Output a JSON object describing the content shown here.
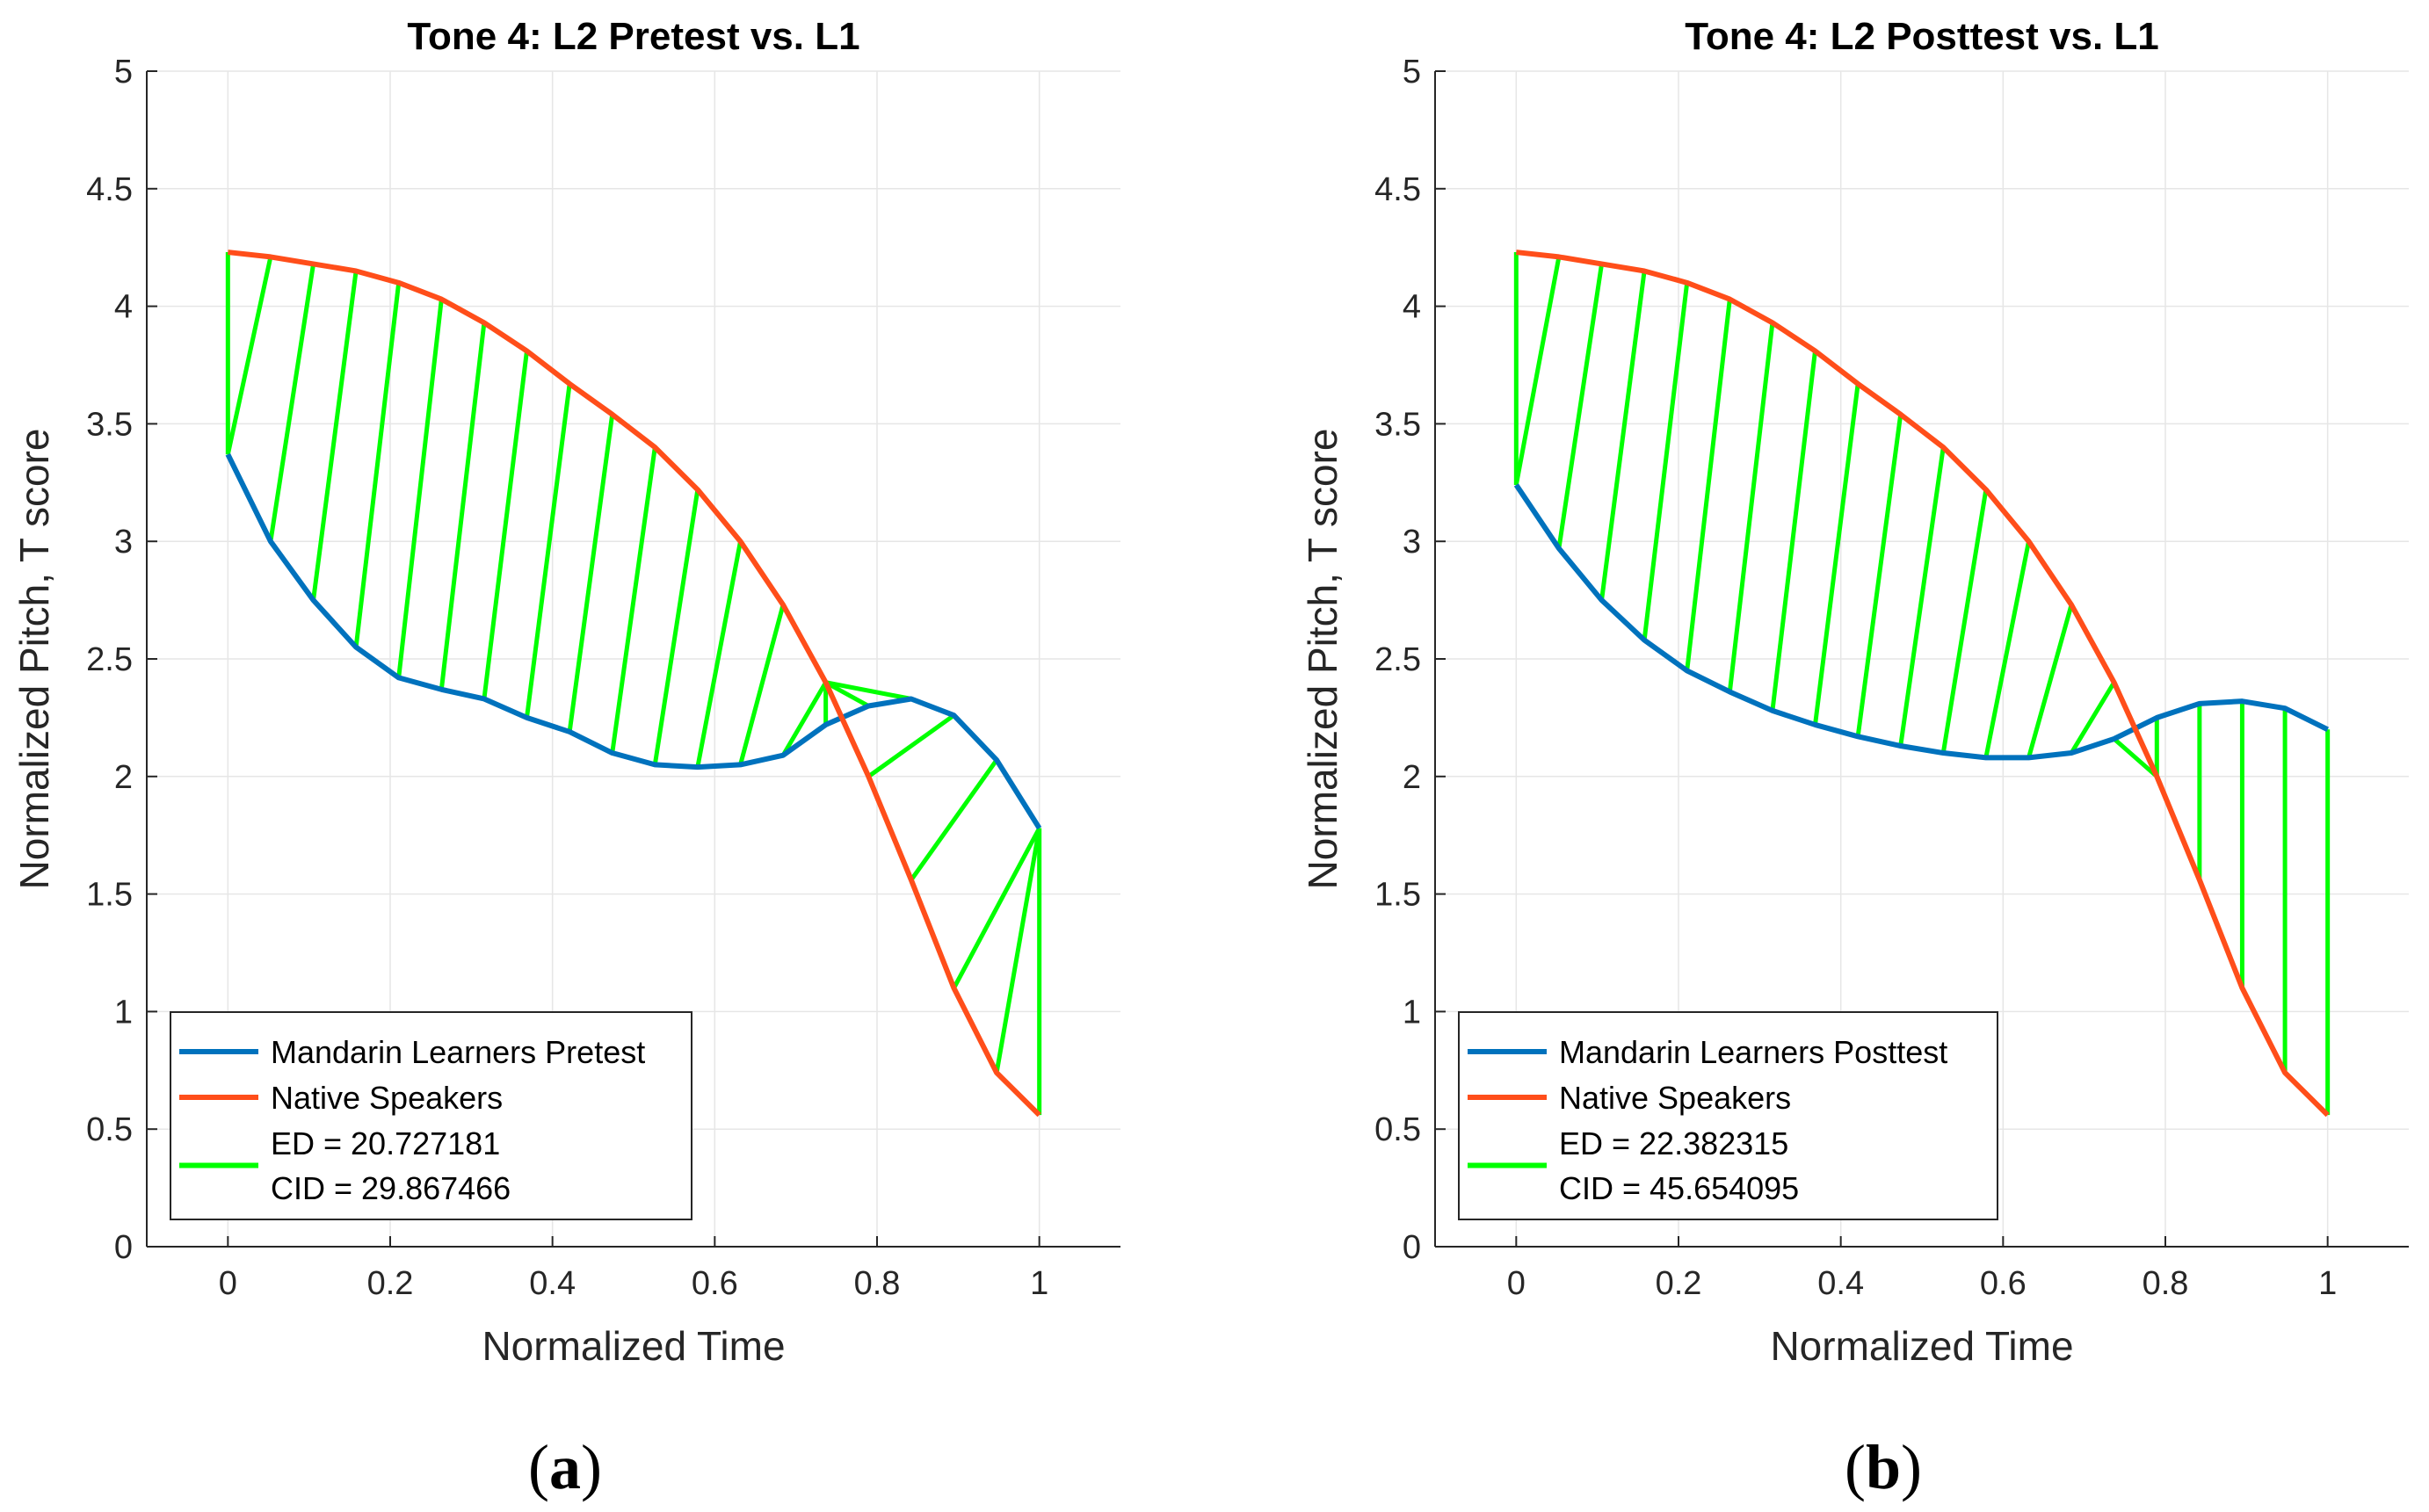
{
  "chart_data": [
    {
      "type": "line",
      "panel_label": {
        "open": "(",
        "letter": "a",
        "close": ")"
      },
      "title": "Tone 4: L2 Pretest vs. L1",
      "xlabel": "Normalized Time",
      "ylabel": "Normalized Pitch, T score",
      "xlim": [
        -0.1,
        1.1
      ],
      "ylim": [
        0,
        5
      ],
      "xticks": [
        0,
        0.2,
        0.4,
        0.6,
        0.8,
        1
      ],
      "xtick_labels": [
        "0",
        "0.2",
        "0.4",
        "0.6",
        "0.8",
        "1"
      ],
      "yticks": [
        0,
        0.5,
        1,
        1.5,
        2,
        2.5,
        3,
        3.5,
        4,
        4.5,
        5
      ],
      "ytick_labels": [
        "0",
        "0.5",
        "1",
        "1.5",
        "2",
        "2.5",
        "3",
        "3.5",
        "4",
        "4.5",
        "5"
      ],
      "grid": true,
      "legend_position": "bottom-left",
      "x": [
        0,
        0.0526,
        0.1053,
        0.1579,
        0.2105,
        0.2632,
        0.3158,
        0.3684,
        0.4211,
        0.4737,
        0.5263,
        0.5789,
        0.6316,
        0.6842,
        0.7368,
        0.7895,
        0.8421,
        0.8947,
        0.9474,
        1
      ],
      "series": [
        {
          "name": "Mandarin Learners Pretest",
          "color": "#0072BD",
          "values": [
            3.37,
            3.0,
            2.75,
            2.55,
            2.42,
            2.37,
            2.33,
            2.25,
            2.19,
            2.1,
            2.05,
            2.04,
            2.05,
            2.09,
            2.22,
            2.3,
            2.33,
            2.26,
            2.07,
            1.78
          ]
        },
        {
          "name": "Native Speakers",
          "color": "#FF4E1A",
          "values": [
            4.23,
            4.21,
            4.18,
            4.15,
            4.1,
            4.03,
            3.93,
            3.81,
            3.67,
            3.54,
            3.4,
            3.22,
            3.0,
            2.73,
            2.4,
            2.0,
            1.56,
            1.1,
            0.74,
            0.56
          ]
        }
      ],
      "warping_path": [
        [
          0,
          0
        ],
        [
          0,
          1
        ],
        [
          1,
          2
        ],
        [
          2,
          3
        ],
        [
          3,
          4
        ],
        [
          4,
          5
        ],
        [
          5,
          6
        ],
        [
          6,
          7
        ],
        [
          7,
          8
        ],
        [
          8,
          9
        ],
        [
          9,
          10
        ],
        [
          10,
          11
        ],
        [
          11,
          12
        ],
        [
          12,
          13
        ],
        [
          13,
          14
        ],
        [
          14,
          14
        ],
        [
          15,
          14
        ],
        [
          16,
          14
        ],
        [
          17,
          15
        ],
        [
          18,
          16
        ],
        [
          19,
          17
        ],
        [
          19,
          18
        ],
        [
          19,
          19
        ]
      ],
      "warping_color": "#00FF00",
      "legend": {
        "entries": [
          "Mandarin Learners Pretest",
          "Native Speakers",
          "ED = 20.727181",
          "CID = 29.867466"
        ]
      }
    },
    {
      "type": "line",
      "panel_label": {
        "open": "(",
        "letter": "b",
        "close": ")"
      },
      "title": "Tone 4: L2 Posttest vs. L1",
      "xlabel": "Normalized Time",
      "ylabel": "Normalized Pitch, T score",
      "xlim": [
        -0.1,
        1.1
      ],
      "ylim": [
        0,
        5
      ],
      "xticks": [
        0,
        0.2,
        0.4,
        0.6,
        0.8,
        1
      ],
      "xtick_labels": [
        "0",
        "0.2",
        "0.4",
        "0.6",
        "0.8",
        "1"
      ],
      "yticks": [
        0,
        0.5,
        1,
        1.5,
        2,
        2.5,
        3,
        3.5,
        4,
        4.5,
        5
      ],
      "ytick_labels": [
        "0",
        "0.5",
        "1",
        "1.5",
        "2",
        "2.5",
        "3",
        "3.5",
        "4",
        "4.5",
        "5"
      ],
      "grid": true,
      "legend_position": "bottom-left",
      "x": [
        0,
        0.0526,
        0.1053,
        0.1579,
        0.2105,
        0.2632,
        0.3158,
        0.3684,
        0.4211,
        0.4737,
        0.5263,
        0.5789,
        0.6316,
        0.6842,
        0.7368,
        0.7895,
        0.8421,
        0.8947,
        0.9474,
        1
      ],
      "series": [
        {
          "name": "Mandarin Learners Posttest",
          "color": "#0072BD",
          "values": [
            3.24,
            2.97,
            2.75,
            2.58,
            2.45,
            2.36,
            2.28,
            2.22,
            2.17,
            2.13,
            2.1,
            2.08,
            2.08,
            2.1,
            2.16,
            2.25,
            2.31,
            2.32,
            2.29,
            2.2
          ]
        },
        {
          "name": "Native Speakers",
          "color": "#FF4E1A",
          "values": [
            4.23,
            4.21,
            4.18,
            4.15,
            4.1,
            4.03,
            3.93,
            3.81,
            3.67,
            3.54,
            3.4,
            3.22,
            3.0,
            2.73,
            2.4,
            2.0,
            1.56,
            1.1,
            0.74,
            0.56
          ]
        }
      ],
      "warping_path": [
        [
          0,
          0
        ],
        [
          0,
          1
        ],
        [
          1,
          2
        ],
        [
          2,
          3
        ],
        [
          3,
          4
        ],
        [
          4,
          5
        ],
        [
          5,
          6
        ],
        [
          6,
          7
        ],
        [
          7,
          8
        ],
        [
          8,
          9
        ],
        [
          9,
          10
        ],
        [
          10,
          11
        ],
        [
          11,
          12
        ],
        [
          12,
          13
        ],
        [
          13,
          14
        ],
        [
          14,
          15
        ],
        [
          15,
          15
        ],
        [
          16,
          16
        ],
        [
          17,
          17
        ],
        [
          18,
          18
        ],
        [
          19,
          19
        ]
      ],
      "warping_color": "#00FF00",
      "legend": {
        "entries": [
          "Mandarin Learners Posttest",
          "Native Speakers",
          "ED = 22.382315",
          "CID = 45.654095"
        ]
      }
    }
  ]
}
